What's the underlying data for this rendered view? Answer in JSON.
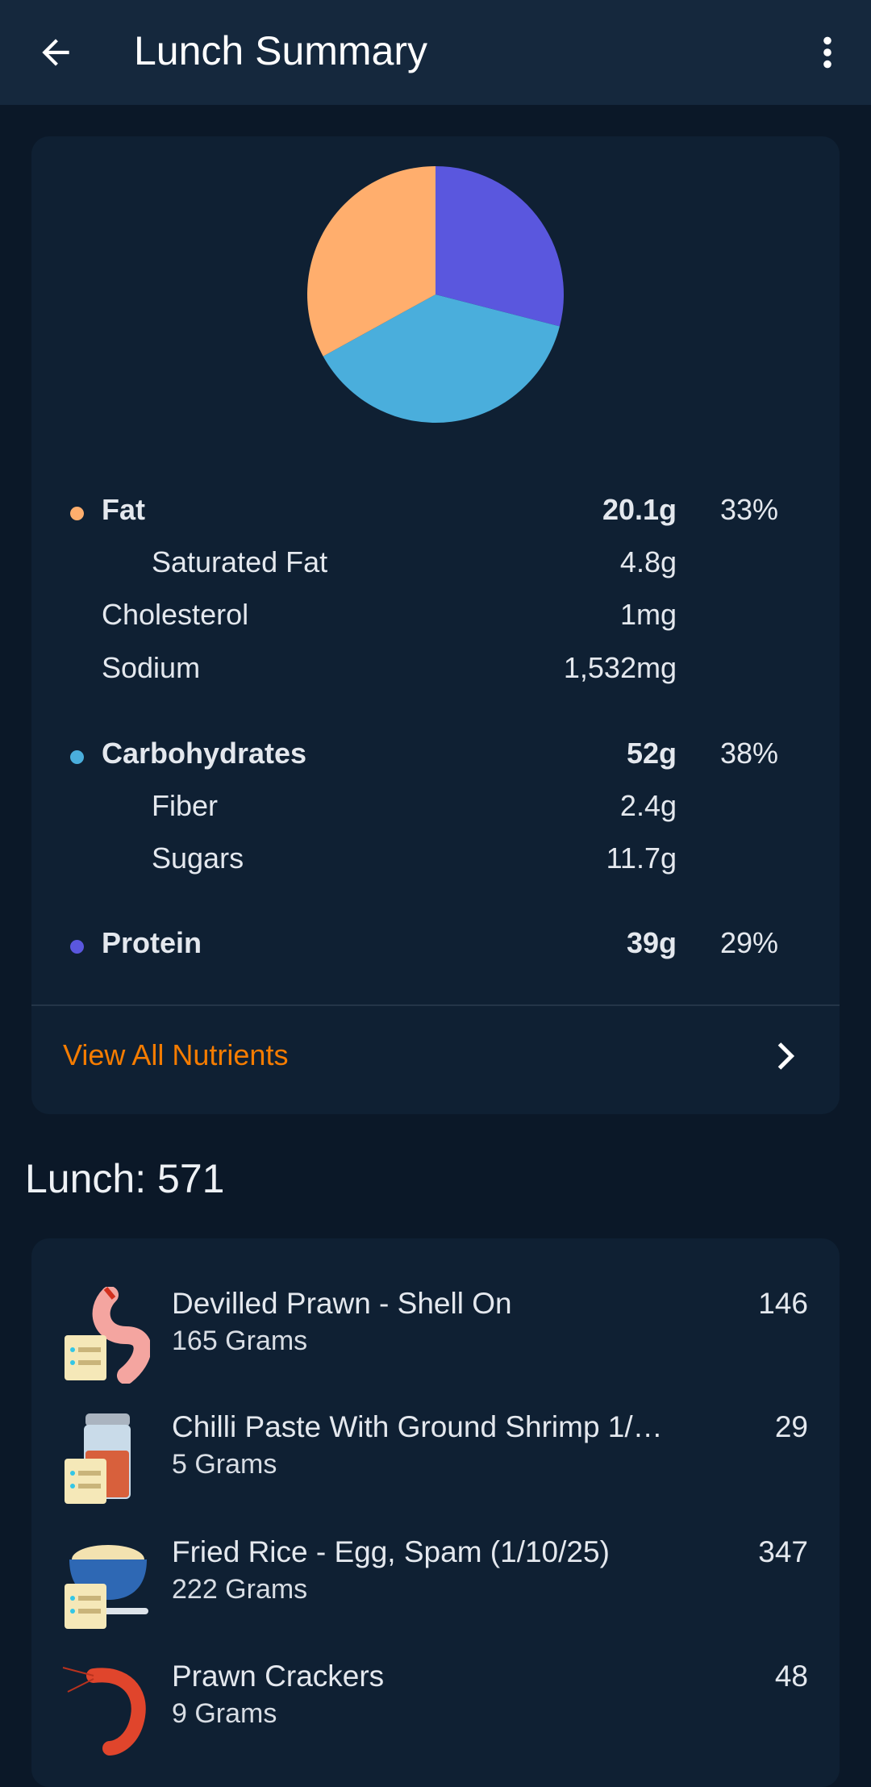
{
  "header": {
    "title": "Lunch Summary",
    "back_icon": "arrow-back-icon",
    "menu_icon": "more-vert-icon"
  },
  "chart_data": {
    "type": "pie",
    "categories": [
      "Protein",
      "Carbohydrates",
      "Fat"
    ],
    "values": [
      29,
      38,
      33
    ],
    "colors": [
      "#5a57de",
      "#4aaedc",
      "#ffae6d"
    ]
  },
  "nutrients": {
    "fat": {
      "label": "Fat",
      "value": "20.1g",
      "pct": "33%",
      "color": "#ffae6d"
    },
    "saturated_fat": {
      "label": "Saturated Fat",
      "value": "4.8g"
    },
    "cholesterol": {
      "label": "Cholesterol",
      "value": "1mg"
    },
    "sodium": {
      "label": "Sodium",
      "value": "1,532mg"
    },
    "carbs": {
      "label": "Carbohydrates",
      "value": "52g",
      "pct": "38%",
      "color": "#4aaedc"
    },
    "fiber": {
      "label": "Fiber",
      "value": "2.4g"
    },
    "sugars": {
      "label": "Sugars",
      "value": "11.7g"
    },
    "protein": {
      "label": "Protein",
      "value": "39g",
      "pct": "29%",
      "color": "#5a57de"
    }
  },
  "view_all": "View All Nutrients",
  "meal": {
    "title": "Lunch: 571"
  },
  "items": [
    {
      "name": "Devilled Prawn - Shell On",
      "grams": "165 Grams",
      "kcal": "146",
      "icon": "prawn-recipe-icon"
    },
    {
      "name": "Chilli Paste With Ground Shrimp 1/…",
      "grams": "5 Grams",
      "kcal": "29",
      "icon": "jar-recipe-icon"
    },
    {
      "name": "Fried Rice - Egg, Spam (1/10/25)",
      "grams": "222 Grams",
      "kcal": "347",
      "icon": "bowl-recipe-icon"
    },
    {
      "name": "Prawn Crackers",
      "grams": "9 Grams",
      "kcal": "48",
      "icon": "shrimp-icon"
    }
  ]
}
